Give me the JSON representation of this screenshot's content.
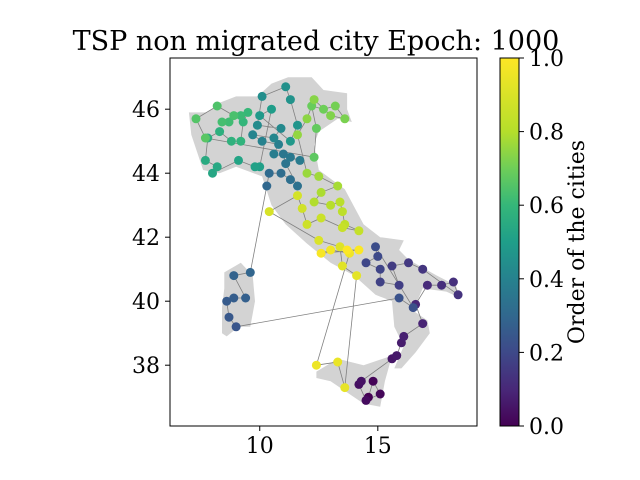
{
  "chart_data": {
    "type": "scatter",
    "title": "TSP non migrated city Epoch: 1000",
    "xlabel": "",
    "ylabel": "",
    "xlim": [
      6.2,
      19.2
    ],
    "ylim": [
      36.1,
      47.6
    ],
    "x_ticks": [
      "10",
      "15"
    ],
    "x_tick_values": [
      10,
      15
    ],
    "y_ticks": [
      "38",
      "40",
      "42",
      "44",
      "46"
    ],
    "y_tick_values": [
      38,
      40,
      42,
      44,
      46
    ],
    "grid": false,
    "colorbar": {
      "label": "Order of the cities",
      "range": [
        0.0,
        1.0
      ],
      "ticks": [
        "0.0",
        "0.2",
        "0.4",
        "0.6",
        "0.8",
        "1.0"
      ],
      "tick_values": [
        0,
        0.2,
        0.4,
        0.6,
        0.8,
        1.0
      ],
      "colormap": "viridis"
    },
    "background_shape_color": "#d3d3d3",
    "route_color": "#808080",
    "route_order": [
      [
        14.6,
        37.0
      ],
      [
        14.8,
        37.5
      ],
      [
        15.1,
        37.1
      ],
      [
        14.5,
        36.9
      ],
      [
        14.2,
        37.4
      ],
      [
        14.3,
        37.5
      ],
      [
        15.6,
        38.2
      ],
      [
        15.8,
        38.3
      ],
      [
        16.0,
        38.7
      ],
      [
        16.1,
        38.9
      ],
      [
        16.9,
        39.3
      ],
      [
        16.6,
        39.9
      ],
      [
        17.1,
        40.5
      ],
      [
        17.7,
        40.5
      ],
      [
        18.2,
        40.6
      ],
      [
        18.4,
        40.2
      ],
      [
        16.9,
        41.0
      ],
      [
        16.3,
        41.2
      ],
      [
        15.6,
        41.1
      ],
      [
        15.9,
        40.5
      ],
      [
        15.1,
        40.6
      ],
      [
        15.1,
        41.0
      ],
      [
        14.5,
        41.2
      ],
      [
        15.0,
        41.4
      ],
      [
        14.9,
        41.7
      ],
      [
        16.5,
        39.8
      ],
      [
        15.9,
        40.1
      ],
      [
        9.0,
        39.2
      ],
      [
        8.7,
        39.5
      ],
      [
        8.6,
        40.0
      ],
      [
        8.9,
        40.1
      ],
      [
        9.4,
        40.1
      ],
      [
        8.9,
        40.8
      ],
      [
        9.6,
        40.9
      ],
      [
        10.3,
        43.6
      ],
      [
        10.4,
        44.0
      ],
      [
        10.9,
        44.0
      ],
      [
        11.3,
        43.8
      ],
      [
        11.6,
        43.6
      ],
      [
        11.1,
        44.3
      ],
      [
        11.0,
        44.6
      ],
      [
        11.3,
        44.5
      ],
      [
        11.7,
        44.4
      ],
      [
        10.6,
        44.6
      ],
      [
        10.8,
        44.9
      ],
      [
        10.1,
        45.0
      ],
      [
        9.7,
        45.2
      ],
      [
        10.6,
        45.1
      ],
      [
        10.9,
        45.4
      ],
      [
        9.9,
        45.5
      ],
      [
        10.1,
        46.4
      ],
      [
        11.1,
        46.7
      ],
      [
        11.3,
        46.3
      ],
      [
        11.6,
        45.5
      ],
      [
        11.3,
        45.0
      ],
      [
        10.0,
        45.8
      ],
      [
        10.5,
        46.0
      ],
      [
        10.0,
        44.2
      ],
      [
        9.8,
        44.2
      ],
      [
        9.1,
        44.4
      ],
      [
        8.0,
        44.0
      ],
      [
        8.2,
        44.2
      ],
      [
        7.7,
        44.4
      ],
      [
        7.8,
        45.1
      ],
      [
        8.3,
        45.3
      ],
      [
        8.8,
        45.0
      ],
      [
        9.2,
        45.0
      ],
      [
        9.3,
        45.6
      ],
      [
        9.5,
        45.9
      ],
      [
        9.2,
        45.8
      ],
      [
        8.7,
        45.6
      ],
      [
        8.4,
        45.6
      ],
      [
        8.9,
        45.8
      ],
      [
        8.2,
        46.1
      ],
      [
        7.3,
        45.7
      ],
      [
        7.7,
        45.1
      ],
      [
        12.3,
        44.5
      ],
      [
        12.4,
        45.4
      ],
      [
        12.2,
        46.1
      ],
      [
        12.7,
        46.0
      ],
      [
        13.2,
        46.1
      ],
      [
        13.6,
        45.7
      ],
      [
        13.0,
        45.8
      ],
      [
        12.3,
        46.3
      ],
      [
        12.0,
        45.7
      ],
      [
        11.6,
        45.2
      ],
      [
        12.0,
        44.0
      ],
      [
        12.5,
        43.9
      ],
      [
        13.3,
        43.6
      ],
      [
        12.6,
        43.4
      ],
      [
        12.3,
        43.1
      ],
      [
        13.0,
        43.0
      ],
      [
        13.4,
        43.1
      ],
      [
        13.5,
        42.8
      ],
      [
        13.6,
        42.4
      ],
      [
        14.2,
        42.2
      ],
      [
        13.5,
        42.3
      ],
      [
        12.6,
        42.6
      ],
      [
        12.0,
        42.4
      ],
      [
        11.8,
        42.9
      ],
      [
        11.6,
        43.3
      ],
      [
        10.4,
        42.8
      ],
      [
        12.5,
        41.9
      ],
      [
        13.4,
        41.7
      ],
      [
        13.5,
        41.1
      ],
      [
        14.1,
        40.8
      ],
      [
        13.6,
        37.3
      ],
      [
        13.3,
        38.1
      ],
      [
        12.4,
        38.0
      ],
      [
        13.8,
        41.5
      ],
      [
        13.0,
        41.6
      ],
      [
        12.6,
        41.5
      ],
      [
        14.2,
        41.6
      ],
      [
        13.7,
        41.6
      ]
    ]
  }
}
